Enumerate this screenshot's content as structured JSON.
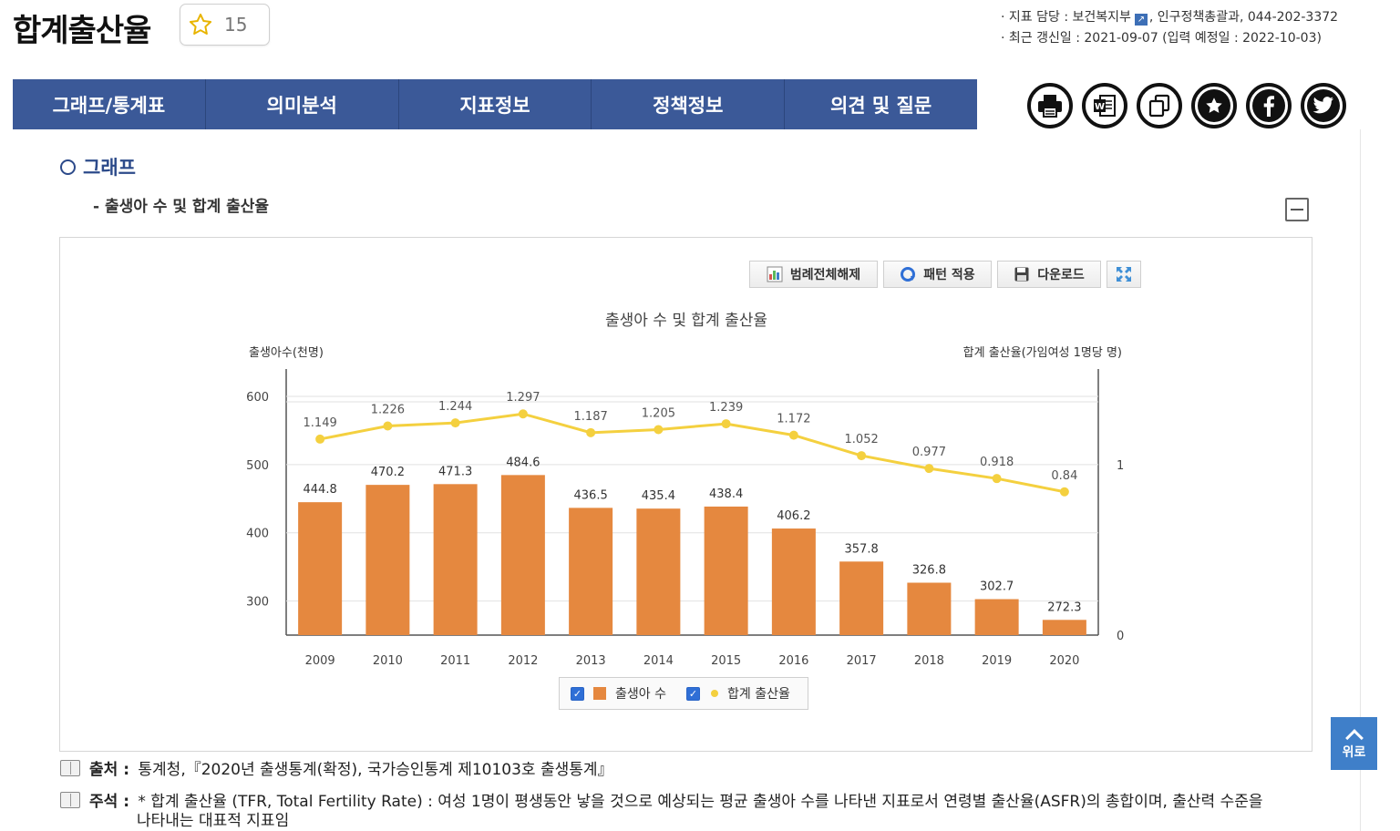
{
  "page": {
    "title": "합계출산율",
    "favorite_count": "15"
  },
  "meta": {
    "owner_label": "· 지표 담당 : ",
    "owner_dept": "보건복지부",
    "owner_rest": ", 인구정책총괄과, 044-202-3372",
    "updated_label": "· 최근 갱신일 : ",
    "updated_value": "2021-09-07 (입력 예정일 : 2022-10-03)"
  },
  "tabs": [
    {
      "label": "그래프/통계표"
    },
    {
      "label": "의미분석"
    },
    {
      "label": "지표정보"
    },
    {
      "label": "정책정보"
    },
    {
      "label": "의견 및 질문"
    }
  ],
  "share_icons": [
    "print-icon",
    "word-icon",
    "copy-icon",
    "star-icon",
    "facebook-icon",
    "twitter-icon"
  ],
  "section": {
    "heading": "그래프",
    "subheading": "- 출생아 수 및 합계 출산율"
  },
  "toolbar": {
    "legend_toggle": "범례전체해제",
    "pattern": "패턴 적용",
    "download": "다운로드"
  },
  "chart_data": {
    "type": "bar+line",
    "title": "출생아 수 및 합계 출산율",
    "ylabel_left": "출생아수(천명)",
    "ylabel_right": "합계 출산율(가임여성 1명당 명)",
    "categories": [
      "2009",
      "2010",
      "2011",
      "2012",
      "2013",
      "2014",
      "2015",
      "2016",
      "2017",
      "2018",
      "2019",
      "2020"
    ],
    "series": [
      {
        "name": "출생아 수",
        "type": "bar",
        "axis": "left",
        "color": "#e5883f",
        "values": [
          444.8,
          470.2,
          471.3,
          484.6,
          436.5,
          435.4,
          438.4,
          406.2,
          357.8,
          326.8,
          302.7,
          272.3
        ]
      },
      {
        "name": "합계 출산율",
        "type": "line",
        "axis": "right",
        "color": "#f4d03f",
        "values": [
          1.149,
          1.226,
          1.244,
          1.297,
          1.187,
          1.205,
          1.239,
          1.172,
          1.052,
          0.977,
          0.918,
          0.84
        ]
      }
    ],
    "left_ticks": [
      "300",
      "400",
      "500",
      "600"
    ],
    "right_ticks": [
      "0",
      "1"
    ],
    "ylim_left": [
      250,
      640
    ],
    "right_scale_note": "right axis nonlinear: 0 at bottom, 1 near 500 level",
    "legend": [
      "출생아 수",
      "합계 출산율"
    ]
  },
  "notes": [
    {
      "label": "출처 :",
      "text": "통계청,『2020년 출생통계(확정), 국가승인통계 제10103호 출생통계』"
    },
    {
      "label": "주석 :",
      "text": "* 합계 출산율 (TFR, Total Fertility Rate) : 여성 1명이 평생동안 낳을 것으로 예상되는 평균 출생아 수를 나타낸 지표로서 연령별 출산율(ASFR)의 총합이며, 출산력 수준을",
      "text2": "나타내는 대표적 지표임"
    }
  ],
  "scroll_top": {
    "label": "위로"
  }
}
